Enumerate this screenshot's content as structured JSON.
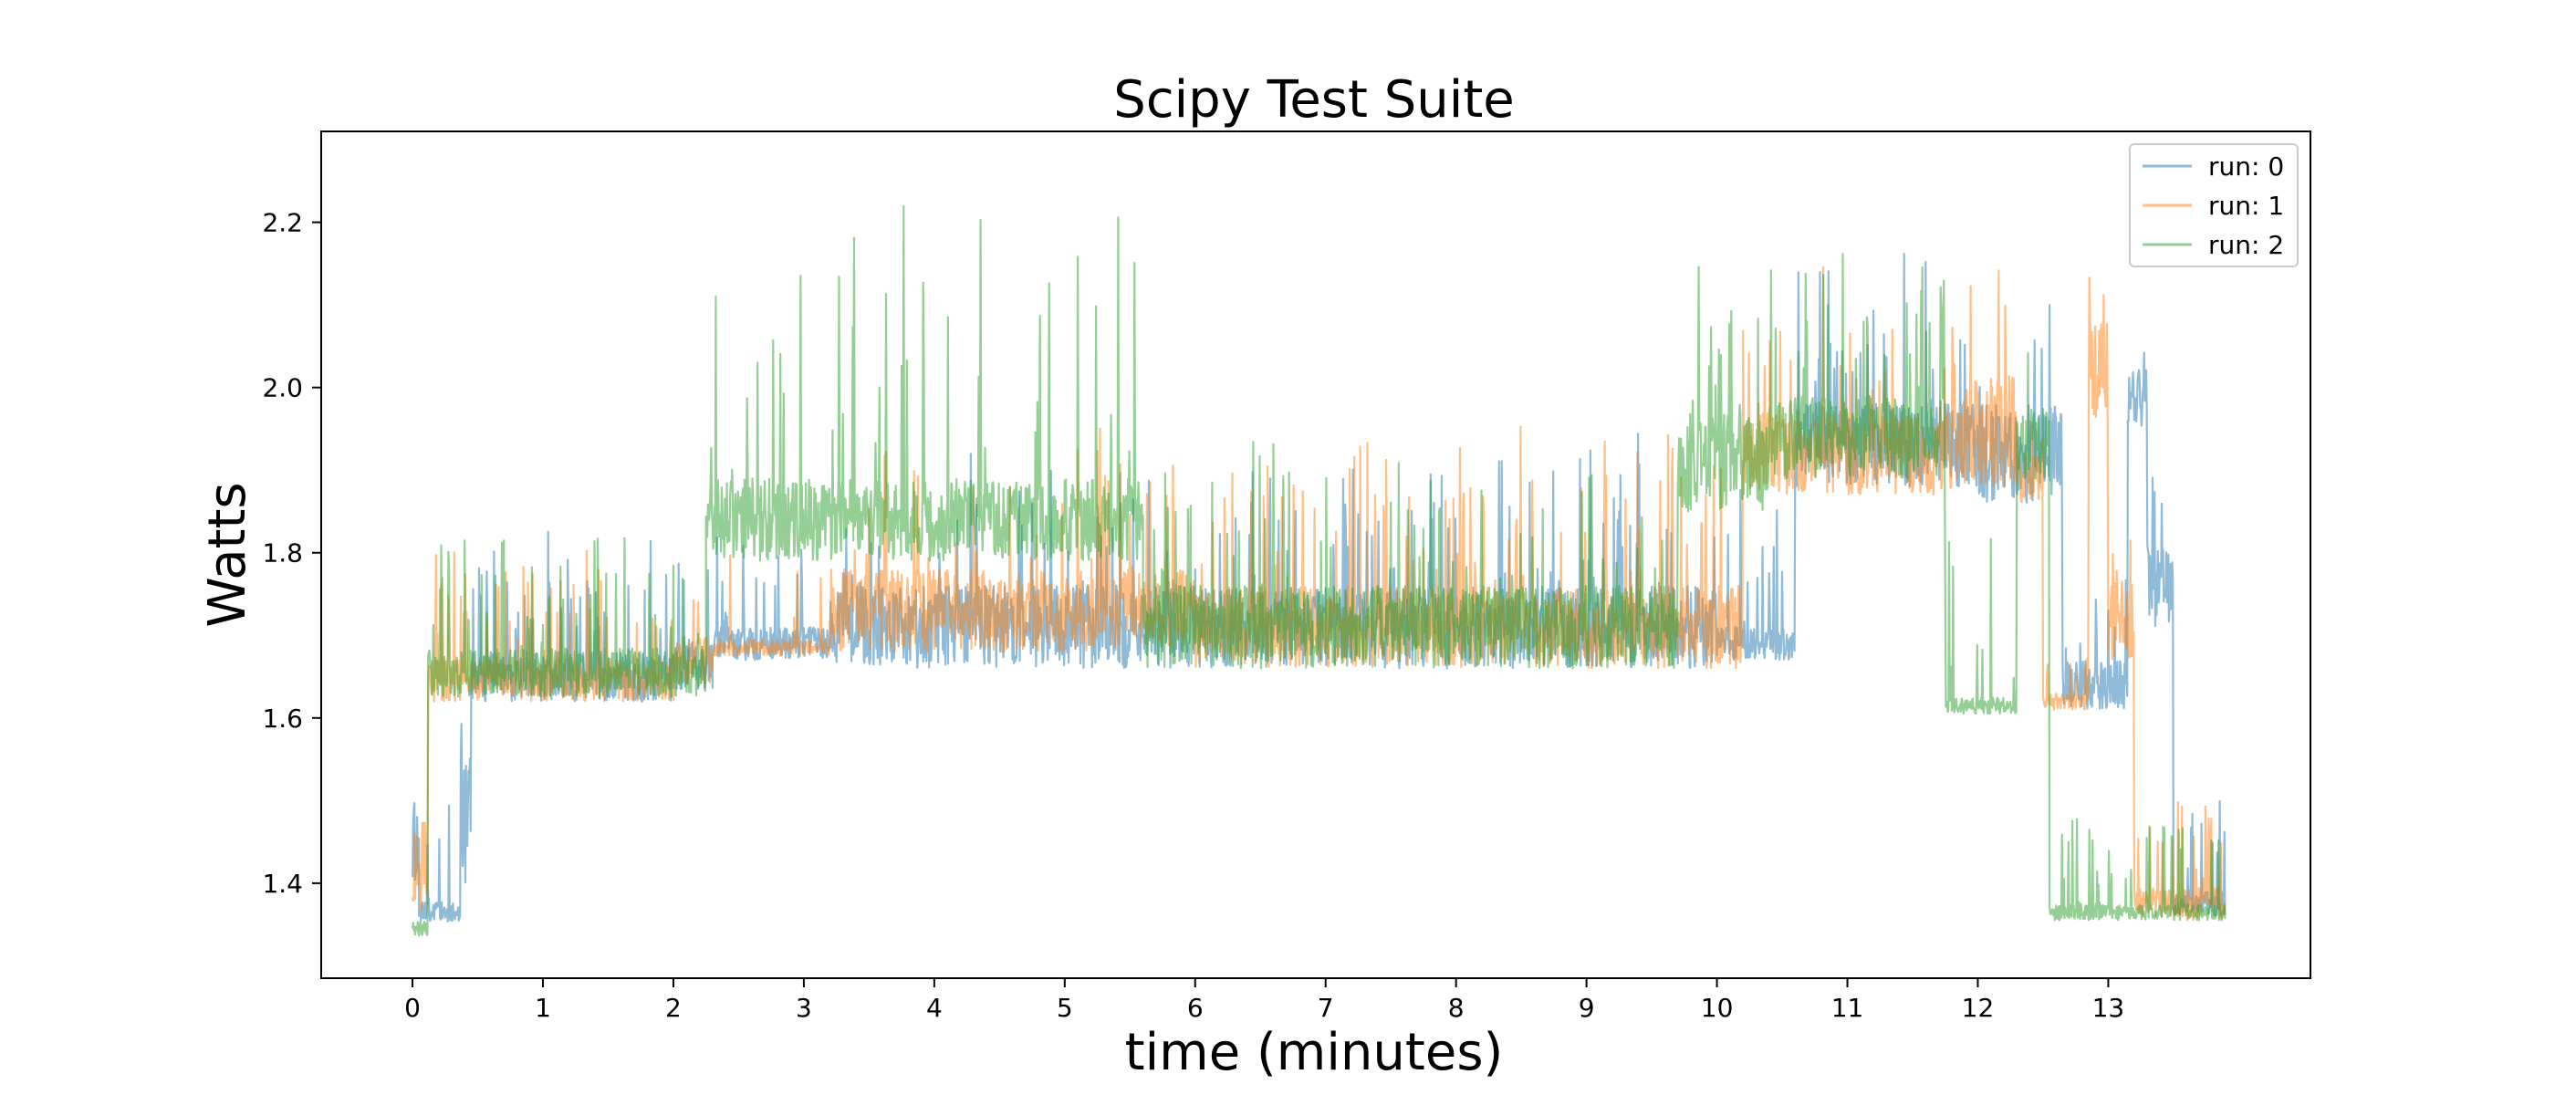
{
  "chart_data": {
    "type": "line",
    "title": "Scipy Test Suite",
    "xlabel": "time (minutes)",
    "ylabel": "Watts",
    "xlim": [
      -0.7,
      14.55
    ],
    "ylim": [
      1.285,
      2.31
    ],
    "xticks": [
      0,
      1,
      2,
      3,
      4,
      5,
      6,
      7,
      8,
      9,
      10,
      11,
      12,
      13
    ],
    "yticks": [
      1.4,
      1.6,
      1.8,
      2.0,
      2.2
    ],
    "ytick_labels": [
      "1.4",
      "1.6",
      "1.8",
      "2.0",
      "2.2"
    ],
    "grid": false,
    "legend_position": "top-right",
    "series": [
      {
        "name": "run: 0",
        "color": "#1f77b4",
        "opacity": 0.5,
        "segments": [
          {
            "x0": 0.0,
            "x1": 0.05,
            "base": 1.45,
            "noise": 0.05,
            "spike_rate": 0,
            "spike_amp": 0
          },
          {
            "x0": 0.05,
            "x1": 0.37,
            "base": 1.365,
            "noise": 0.012,
            "spike_rate": 0.12,
            "spike_amp": 0.13
          },
          {
            "x0": 0.37,
            "x1": 0.45,
            "base": 1.5,
            "noise": 0.1,
            "spike_rate": 0,
            "spike_amp": 0
          },
          {
            "x0": 0.45,
            "x1": 2.0,
            "base": 1.65,
            "noise": 0.03,
            "spike_rate": 0.12,
            "spike_amp": 0.15
          },
          {
            "x0": 2.0,
            "x1": 2.3,
            "base": 1.665,
            "noise": 0.03,
            "spike_rate": 0.1,
            "spike_amp": 0.12
          },
          {
            "x0": 2.3,
            "x1": 3.2,
            "base": 1.69,
            "noise": 0.02,
            "spike_rate": 0.08,
            "spike_amp": 0.12
          },
          {
            "x0": 3.2,
            "x1": 6.0,
            "base": 1.71,
            "noise": 0.05,
            "spike_rate": 0.1,
            "spike_amp": 0.18
          },
          {
            "x0": 6.0,
            "x1": 10.0,
            "base": 1.71,
            "noise": 0.05,
            "spike_rate": 0.1,
            "spike_amp": 0.2
          },
          {
            "x0": 10.0,
            "x1": 10.6,
            "base": 1.69,
            "noise": 0.02,
            "spike_rate": 0.1,
            "spike_amp": 0.2
          },
          {
            "x0": 10.6,
            "x1": 12.0,
            "base": 1.93,
            "noise": 0.05,
            "spike_rate": 0.12,
            "spike_amp": 0.2
          },
          {
            "x0": 12.0,
            "x1": 12.65,
            "base": 1.92,
            "noise": 0.06,
            "spike_rate": 0.1,
            "spike_amp": 0.15
          },
          {
            "x0": 12.65,
            "x1": 13.15,
            "base": 1.64,
            "noise": 0.03,
            "spike_rate": 0.1,
            "spike_amp": 0.15
          },
          {
            "x0": 13.15,
            "x1": 13.3,
            "base": 1.99,
            "noise": 0.04,
            "spike_rate": 0.1,
            "spike_amp": 0.1
          },
          {
            "x0": 13.3,
            "x1": 13.5,
            "base": 1.76,
            "noise": 0.05,
            "spike_rate": 0.1,
            "spike_amp": 0.1
          },
          {
            "x0": 13.5,
            "x1": 13.9,
            "base": 1.375,
            "noise": 0.015,
            "spike_rate": 0.15,
            "spike_amp": 0.12
          }
        ]
      },
      {
        "name": "run: 1",
        "color": "#ff7f0e",
        "opacity": 0.5,
        "segments": [
          {
            "x0": 0.0,
            "x1": 0.12,
            "base": 1.42,
            "noise": 0.06,
            "spike_rate": 0,
            "spike_amp": 0
          },
          {
            "x0": 0.12,
            "x1": 2.0,
            "base": 1.645,
            "noise": 0.025,
            "spike_rate": 0.12,
            "spike_amp": 0.15
          },
          {
            "x0": 2.0,
            "x1": 2.3,
            "base": 1.67,
            "noise": 0.03,
            "spike_rate": 0.1,
            "spike_amp": 0.15
          },
          {
            "x0": 2.3,
            "x1": 3.2,
            "base": 1.685,
            "noise": 0.01,
            "spike_rate": 0.05,
            "spike_amp": 0.12
          },
          {
            "x0": 3.2,
            "x1": 6.0,
            "base": 1.73,
            "noise": 0.05,
            "spike_rate": 0.1,
            "spike_amp": 0.18
          },
          {
            "x0": 6.0,
            "x1": 10.2,
            "base": 1.71,
            "noise": 0.05,
            "spike_rate": 0.1,
            "spike_amp": 0.22
          },
          {
            "x0": 10.2,
            "x1": 11.9,
            "base": 1.92,
            "noise": 0.05,
            "spike_rate": 0.1,
            "spike_amp": 0.2
          },
          {
            "x0": 11.9,
            "x1": 12.3,
            "base": 1.95,
            "noise": 0.07,
            "spike_rate": 0.1,
            "spike_amp": 0.15
          },
          {
            "x0": 12.3,
            "x1": 12.5,
            "base": 1.89,
            "noise": 0.03,
            "spike_rate": 0.1,
            "spike_amp": 0.1
          },
          {
            "x0": 12.5,
            "x1": 12.85,
            "base": 1.62,
            "noise": 0.01,
            "spike_rate": 0.1,
            "spike_amp": 0.1
          },
          {
            "x0": 12.85,
            "x1": 13.0,
            "base": 2.02,
            "noise": 0.06,
            "spike_rate": 0.2,
            "spike_amp": 0.15
          },
          {
            "x0": 13.0,
            "x1": 13.2,
            "base": 1.72,
            "noise": 0.05,
            "spike_rate": 0.1,
            "spike_amp": 0.1
          },
          {
            "x0": 13.2,
            "x1": 13.9,
            "base": 1.375,
            "noise": 0.02,
            "spike_rate": 0.15,
            "spike_amp": 0.12
          }
        ]
      },
      {
        "name": "run: 2",
        "color": "#2ca02c",
        "opacity": 0.5,
        "segments": [
          {
            "x0": 0.0,
            "x1": 0.12,
            "base": 1.345,
            "noise": 0.01,
            "spike_rate": 0,
            "spike_amp": 0
          },
          {
            "x0": 0.12,
            "x1": 2.25,
            "base": 1.655,
            "noise": 0.03,
            "spike_rate": 0.12,
            "spike_amp": 0.15
          },
          {
            "x0": 2.25,
            "x1": 5.6,
            "base": 1.84,
            "noise": 0.05,
            "spike_rate": 0.06,
            "spike_amp": 0.35
          },
          {
            "x0": 5.6,
            "x1": 9.7,
            "base": 1.71,
            "noise": 0.05,
            "spike_rate": 0.1,
            "spike_amp": 0.2
          },
          {
            "x0": 9.7,
            "x1": 10.4,
            "base": 1.91,
            "noise": 0.06,
            "spike_rate": 0.1,
            "spike_amp": 0.2
          },
          {
            "x0": 10.4,
            "x1": 11.75,
            "base": 1.94,
            "noise": 0.05,
            "spike_rate": 0.12,
            "spike_amp": 0.2
          },
          {
            "x0": 11.75,
            "x1": 12.3,
            "base": 1.615,
            "noise": 0.01,
            "spike_rate": 0.1,
            "spike_amp": 0.2
          },
          {
            "x0": 12.3,
            "x1": 12.55,
            "base": 1.93,
            "noise": 0.04,
            "spike_rate": 0.1,
            "spike_amp": 0.1
          },
          {
            "x0": 12.55,
            "x1": 13.0,
            "base": 1.365,
            "noise": 0.01,
            "spike_rate": 0.15,
            "spike_amp": 0.12
          },
          {
            "x0": 13.0,
            "x1": 13.9,
            "base": 1.365,
            "noise": 0.01,
            "spike_rate": 0.15,
            "spike_amp": 0.12
          }
        ]
      }
    ]
  }
}
